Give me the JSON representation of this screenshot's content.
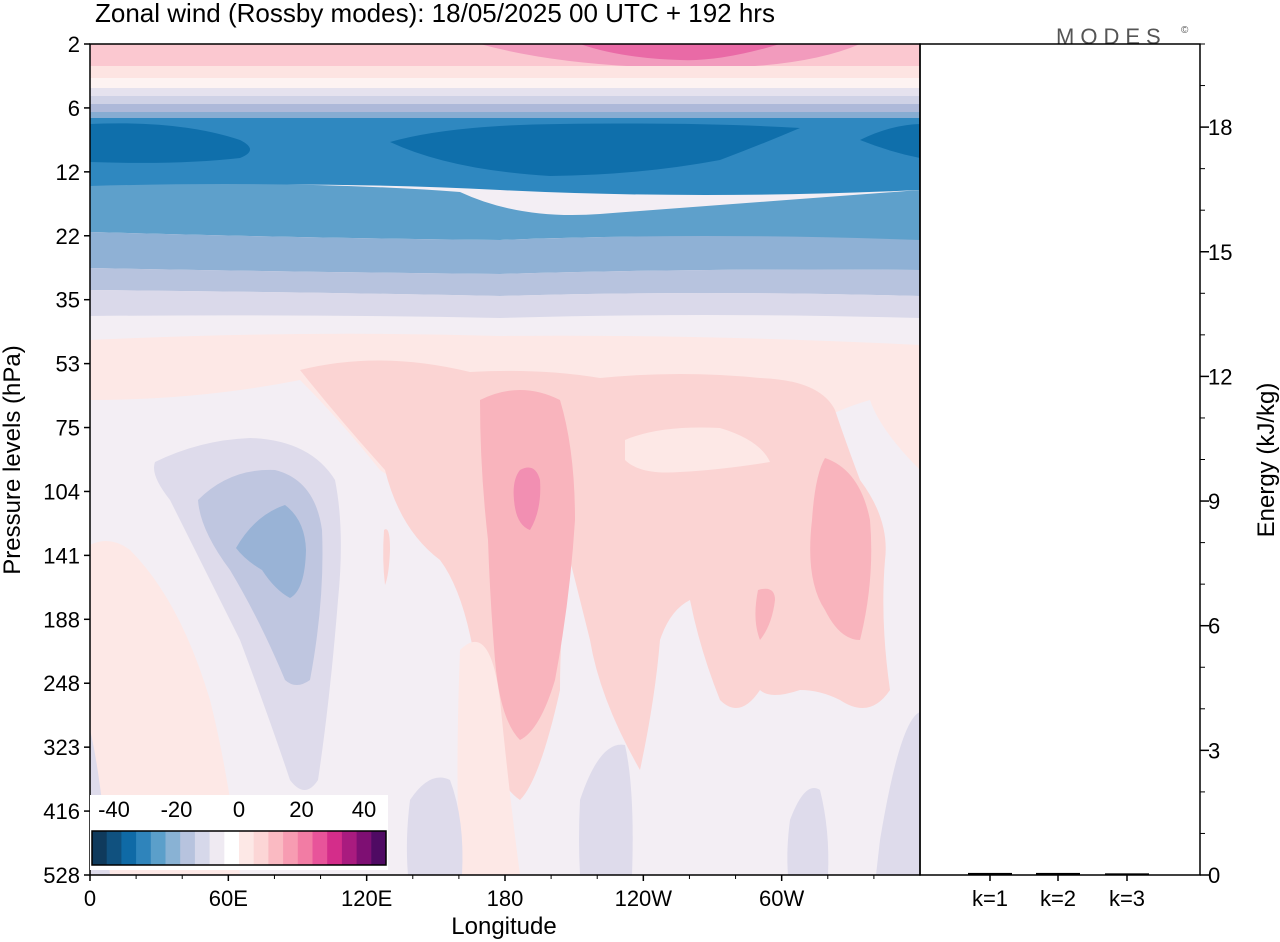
{
  "title": "Zonal wind (Rossby modes):  18/05/2025  00 UTC  + 192 hrs",
  "brand": "MODES",
  "brand_mark": "©",
  "chart_data": [
    {
      "type": "heatmap",
      "variable": "Zonal wind",
      "xlabel": "Longitude",
      "ylabel": "Pressure levels (hPa)",
      "x_ticks": [
        "0",
        "60E",
        "120E",
        "180",
        "120W",
        "60W"
      ],
      "y_ticks": [
        "2",
        "6",
        "12",
        "22",
        "35",
        "53",
        "75",
        "104",
        "141",
        "188",
        "248",
        "323",
        "416",
        "528"
      ],
      "y_scale": "log-pressure",
      "colorbar": {
        "labels": [
          "-40",
          "-20",
          "0",
          "20",
          "40"
        ],
        "colors": [
          "#0f3a5c",
          "#10517f",
          "#0f6aa6",
          "#2f84bb",
          "#5b9fca",
          "#89b2d4",
          "#b7c3de",
          "#d6d8ea",
          "#efeaf2",
          "#ffffff",
          "#fde8e6",
          "#fcd6d6",
          "#fabac2",
          "#f79cb2",
          "#f27ca4",
          "#e8549a",
          "#d42d8a",
          "#a91b7f",
          "#7e0f73",
          "#4f0a63"
        ]
      },
      "field_description_levels": [
        {
          "level": "2-4",
          "value_range": "5 to 30"
        },
        {
          "level": "6-35",
          "value_range": "-30 to -5"
        },
        {
          "level": "53-528",
          "value_range": "-15 to 15"
        }
      ]
    },
    {
      "type": "bar",
      "categories": [
        "k=1",
        "k=2",
        "k=3"
      ],
      "values": [
        0.05,
        0.05,
        0.04
      ],
      "ylabel": "Energy (kJ/kg)",
      "ylim": [
        0,
        20
      ],
      "y_ticks": [
        "0",
        "3",
        "6",
        "9",
        "12",
        "15",
        "18"
      ]
    }
  ]
}
